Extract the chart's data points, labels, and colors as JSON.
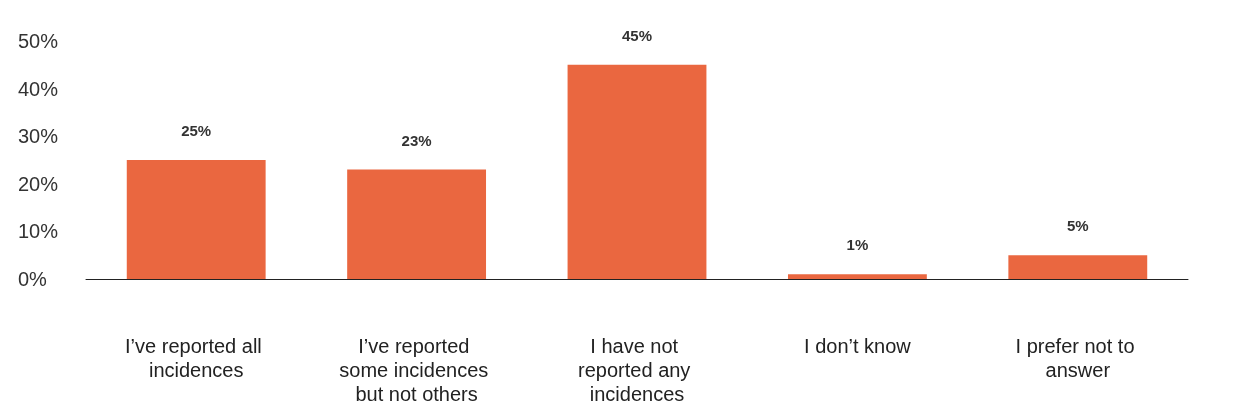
{
  "chart_data": {
    "type": "bar",
    "categories": [
      "I’ve reported all incidences",
      "I’ve reported some incidences but not others",
      "I have not reported any incidences",
      "I don’t know",
      "I prefer not to answer"
    ],
    "values": [
      25,
      23,
      45,
      1,
      5
    ],
    "value_labels": [
      "25%",
      "23%",
      "45%",
      "1%",
      "5%"
    ],
    "color": "#ea6740",
    "ylim": [
      0,
      50
    ],
    "yticks": [
      {
        "value": 0,
        "label": "0%"
      },
      {
        "value": 10,
        "label": "10%"
      },
      {
        "value": 20,
        "label": "20%"
      },
      {
        "value": 30,
        "label": "30%"
      },
      {
        "value": 40,
        "label": "40%"
      },
      {
        "value": 50,
        "label": "50%"
      }
    ],
    "grid": false
  }
}
